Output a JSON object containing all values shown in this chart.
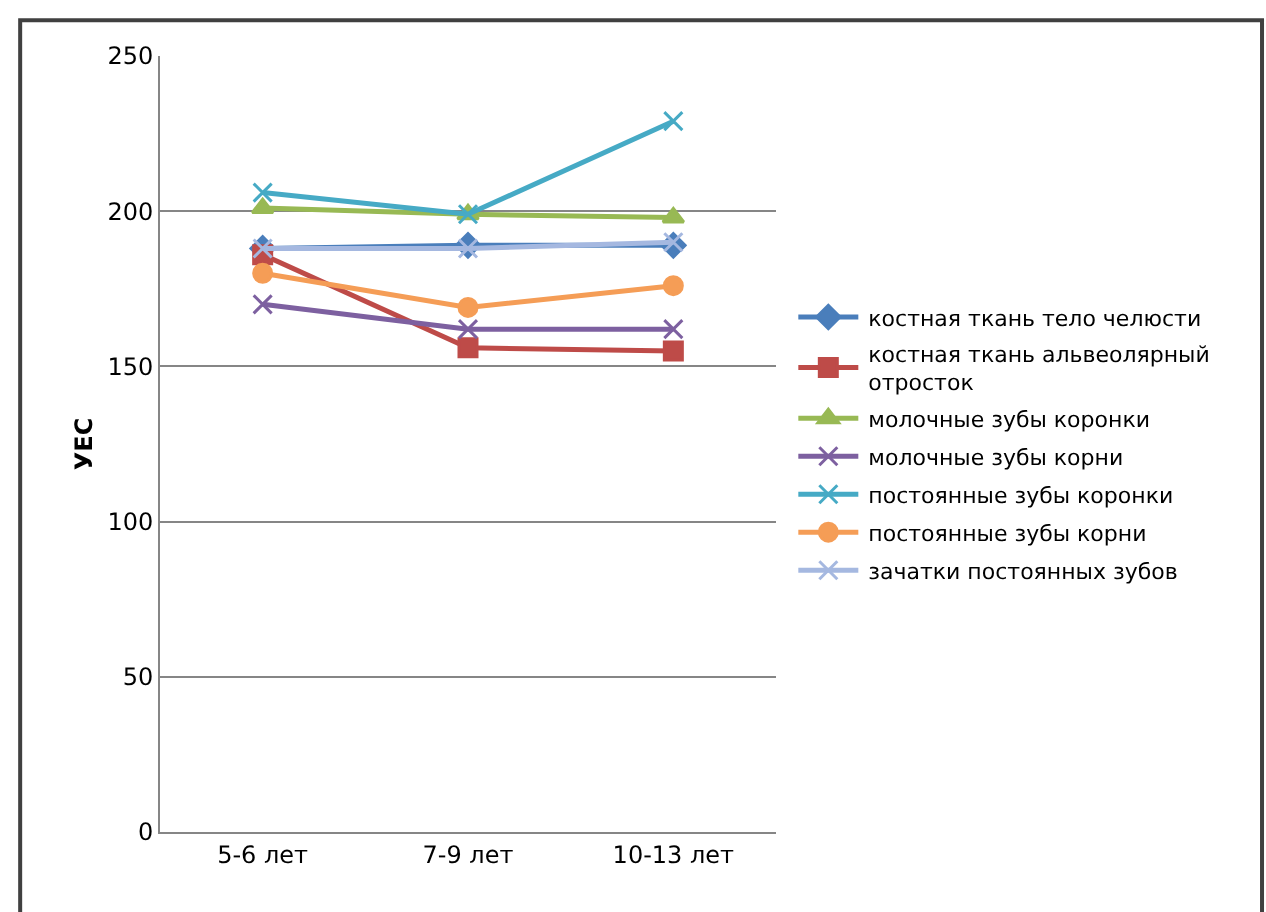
{
  "chart_data": {
    "type": "line",
    "ylabel": "УЕС",
    "categories": [
      "5-6 лет",
      "7-9 лет",
      "10-13 лет"
    ],
    "ylim": [
      0,
      250
    ],
    "yticks": [
      0,
      50,
      100,
      150,
      200,
      250
    ],
    "grid": "y",
    "legend": "right",
    "series": [
      {
        "name": "костная ткань тело челюсти",
        "color": "#4a7ebb",
        "marker": "diamond",
        "values": [
          188,
          189,
          189
        ]
      },
      {
        "name": "костная ткань альвеолярный отросток",
        "color": "#be4b48",
        "marker": "square",
        "values": [
          186,
          156,
          155
        ]
      },
      {
        "name": "молочные зубы коронки",
        "color": "#98b954",
        "marker": "triangle",
        "values": [
          201,
          199,
          198
        ]
      },
      {
        "name": "молочные зубы корни",
        "color": "#7d60a0",
        "marker": "cross",
        "values": [
          170,
          162,
          162
        ]
      },
      {
        "name": "постоянные зубы коронки",
        "color": "#46aac5",
        "marker": "cross",
        "values": [
          206,
          199,
          229
        ]
      },
      {
        "name": "постоянные зубы корни",
        "color": "#f59d56",
        "marker": "circle",
        "values": [
          180,
          169,
          176
        ]
      },
      {
        "name": "зачатки постоянных зубов",
        "color": "#a5b8e0",
        "marker": "cross",
        "values": [
          188,
          188,
          190
        ]
      }
    ]
  }
}
